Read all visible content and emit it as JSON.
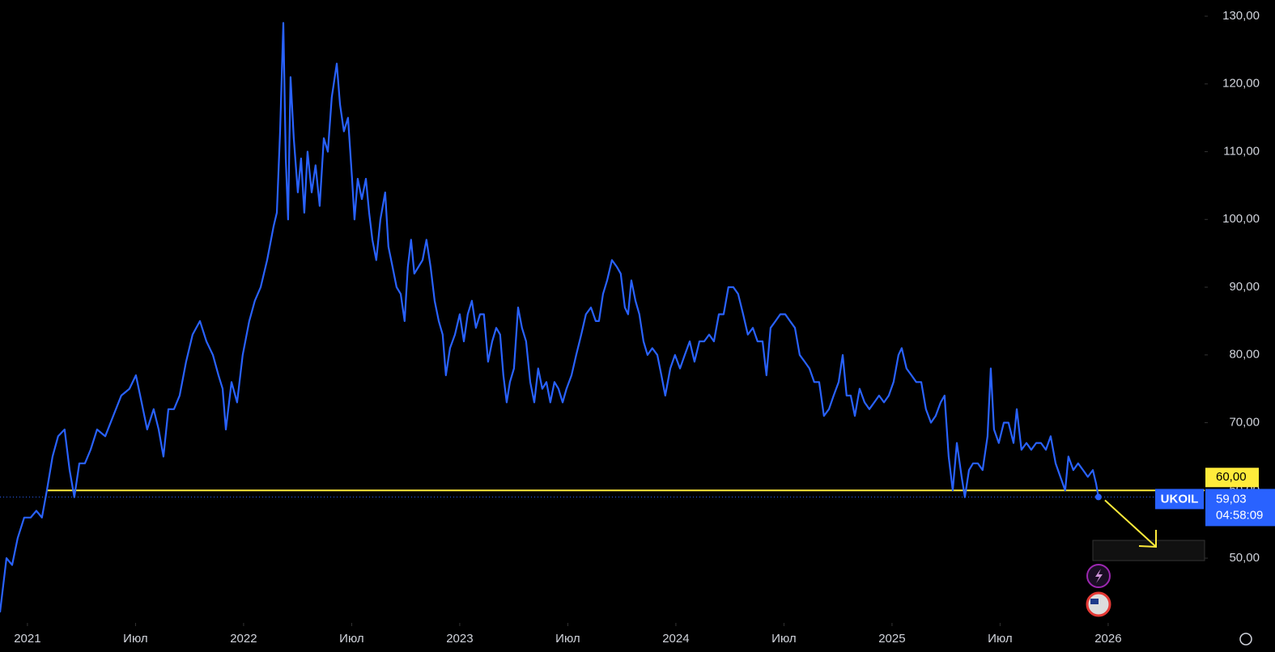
{
  "chart_data": {
    "type": "line",
    "series": [
      {
        "name": "UKOIL",
        "color": "#2962ff",
        "values": [
          42,
          50,
          49,
          53,
          56,
          56,
          57,
          56,
          60,
          65,
          68,
          69,
          63,
          59,
          64,
          64,
          66,
          69,
          68,
          71,
          74,
          75,
          77,
          73,
          69,
          72,
          69,
          65,
          72,
          72,
          74,
          79,
          83,
          85,
          82,
          80,
          77,
          75,
          69,
          76,
          73,
          80,
          85,
          88,
          90,
          94,
          99,
          101,
          113,
          129,
          109,
          100,
          121,
          112,
          104,
          109,
          101,
          110,
          104,
          108,
          102,
          112,
          110,
          118,
          123,
          117,
          113,
          115,
          106,
          100,
          106,
          103,
          106,
          101,
          97,
          94,
          100,
          104,
          96,
          93,
          90,
          89,
          85,
          93,
          97,
          92,
          93,
          94,
          97,
          93,
          88,
          85,
          83,
          77,
          81,
          83,
          86,
          82,
          86,
          88,
          84,
          86,
          86,
          79,
          82,
          84,
          83,
          77,
          73,
          76,
          78,
          87,
          84,
          82,
          76,
          73,
          78,
          75,
          76,
          73,
          76,
          75,
          73,
          75,
          77,
          80,
          83,
          86,
          87,
          85,
          85,
          89,
          91,
          94,
          93,
          92,
          87,
          86,
          91,
          88,
          86,
          82,
          80,
          81,
          80,
          77,
          74,
          78,
          80,
          78,
          80,
          82,
          79,
          82,
          82,
          83,
          82,
          86,
          86,
          90,
          90,
          89,
          86,
          83,
          84,
          82,
          82,
          77,
          84,
          85,
          86,
          86,
          85,
          84,
          80,
          79,
          78,
          76,
          76,
          71,
          72,
          74,
          76,
          80,
          74,
          74,
          71,
          75,
          73,
          72,
          73,
          74,
          73,
          74,
          76,
          80,
          81,
          78,
          77,
          76,
          76,
          72,
          70,
          71,
          73,
          74,
          65,
          60,
          67,
          62,
          59,
          63,
          64,
          64,
          63,
          68,
          78,
          69,
          67,
          70,
          70,
          67,
          72,
          66,
          67,
          66,
          67,
          67,
          66,
          68,
          64,
          62,
          60,
          65,
          63,
          64,
          63,
          62,
          63,
          61,
          59.03
        ]
      }
    ],
    "x": [
      2020.873,
      2020.903,
      2020.929,
      2020.955,
      2020.985,
      2021.015,
      2021.041,
      2021.067,
      2021.09,
      2021.116,
      2021.142,
      2021.172,
      2021.195,
      2021.217,
      2021.24,
      2021.266,
      2021.292,
      2021.322,
      2021.36,
      2021.397,
      2021.434,
      2021.472,
      2021.502,
      2021.528,
      2021.554,
      2021.584,
      2021.607,
      2021.629,
      2021.652,
      2021.678,
      2021.704,
      2021.734,
      2021.764,
      2021.798,
      2021.828,
      2021.858,
      2021.884,
      2021.903,
      2021.918,
      2021.944,
      2021.97,
      2021.996,
      2022.026,
      2022.052,
      2022.079,
      2022.109,
      2022.139,
      2022.154,
      2022.169,
      2022.184,
      2022.195,
      2022.206,
      2022.217,
      2022.232,
      2022.251,
      2022.266,
      2022.281,
      2022.296,
      2022.315,
      2022.333,
      2022.352,
      2022.371,
      2022.39,
      2022.408,
      2022.431,
      2022.446,
      2022.464,
      2022.483,
      2022.502,
      2022.513,
      2022.528,
      2022.547,
      2022.566,
      2022.581,
      2022.596,
      2022.614,
      2022.633,
      2022.655,
      2022.67,
      2022.689,
      2022.708,
      2022.727,
      2022.745,
      2022.76,
      2022.775,
      2022.79,
      2022.809,
      2022.828,
      2022.846,
      2022.865,
      2022.884,
      2022.903,
      2022.921,
      2022.936,
      2022.955,
      2022.978,
      2023.0,
      2023.019,
      2023.037,
      2023.056,
      2023.075,
      2023.094,
      2023.112,
      2023.131,
      2023.15,
      2023.169,
      2023.187,
      2023.202,
      2023.217,
      2023.232,
      2023.251,
      2023.27,
      2023.288,
      2023.307,
      2023.326,
      2023.345,
      2023.363,
      2023.382,
      2023.401,
      2023.419,
      2023.438,
      2023.457,
      2023.476,
      2023.494,
      2023.517,
      2023.539,
      2023.562,
      2023.584,
      2023.607,
      2023.629,
      2023.644,
      2023.663,
      2023.682,
      2023.704,
      2023.727,
      2023.745,
      2023.764,
      2023.779,
      2023.794,
      2023.813,
      2023.831,
      2023.85,
      2023.869,
      2023.891,
      2023.914,
      2023.933,
      2023.951,
      2023.974,
      2023.996,
      2024.019,
      2024.041,
      2024.064,
      2024.086,
      2024.109,
      2024.131,
      2024.154,
      2024.176,
      2024.199,
      2024.221,
      2024.243,
      2024.266,
      2024.288,
      2024.311,
      2024.333,
      2024.356,
      2024.378,
      2024.401,
      2024.419,
      2024.438,
      2024.461,
      2024.483,
      2024.506,
      2024.528,
      2024.551,
      2024.573,
      2024.596,
      2024.618,
      2024.64,
      2024.663,
      2024.685,
      2024.708,
      2024.73,
      2024.753,
      2024.772,
      2024.79,
      2024.809,
      2024.828,
      2024.85,
      2024.873,
      2024.895,
      2024.918,
      2024.94,
      2024.963,
      2024.985,
      2025.007,
      2025.03,
      2025.045,
      2025.067,
      2025.09,
      2025.112,
      2025.135,
      2025.157,
      2025.18,
      2025.202,
      2025.225,
      2025.243,
      2025.262,
      2025.281,
      2025.3,
      2025.322,
      2025.337,
      2025.356,
      2025.375,
      2025.397,
      2025.419,
      2025.442,
      2025.457,
      2025.472,
      2025.494,
      2025.517,
      2025.539,
      2025.562,
      2025.577,
      2025.599,
      2025.622,
      2025.644,
      2025.667,
      2025.689,
      2025.712,
      2025.734,
      2025.757,
      2025.779,
      2025.801,
      2025.816,
      2025.839,
      2025.861,
      2025.884,
      2025.906,
      2025.929,
      2025.944,
      2025.955
    ],
    "xlim": [
      2020.873,
      2026.446
    ],
    "xticks": [
      2021,
      {
        "value": 2021.5,
        "label": "Июл"
      },
      2022,
      {
        "value": 2022.5,
        "label": "Июл"
      },
      2023,
      {
        "value": 2023.5,
        "label": "Июл"
      },
      2024,
      {
        "value": 2024.5,
        "label": "Июл"
      },
      2025,
      {
        "value": 2025.5,
        "label": "Июл"
      },
      2026
    ],
    "ylim": [
      40.45,
      132.39
    ],
    "yticks": [
      {
        "value": 50,
        "label": "50,00"
      },
      {
        "value": 60,
        "label": "60,00"
      },
      {
        "value": 70,
        "label": "70,00"
      },
      {
        "value": 80,
        "label": "80,00"
      },
      {
        "value": 90,
        "label": "90,00"
      },
      {
        "value": 100,
        "label": "100,00"
      },
      {
        "value": 110,
        "label": "110,00"
      },
      {
        "value": 120,
        "label": "120,00"
      },
      {
        "value": 130,
        "label": "130,00"
      }
    ],
    "hline": {
      "value": 60,
      "label": "60,00",
      "color": "#ffeb3b"
    },
    "price_label": {
      "value": 59.03,
      "label": "59,03"
    },
    "countdown": "04:58:09"
  }
}
